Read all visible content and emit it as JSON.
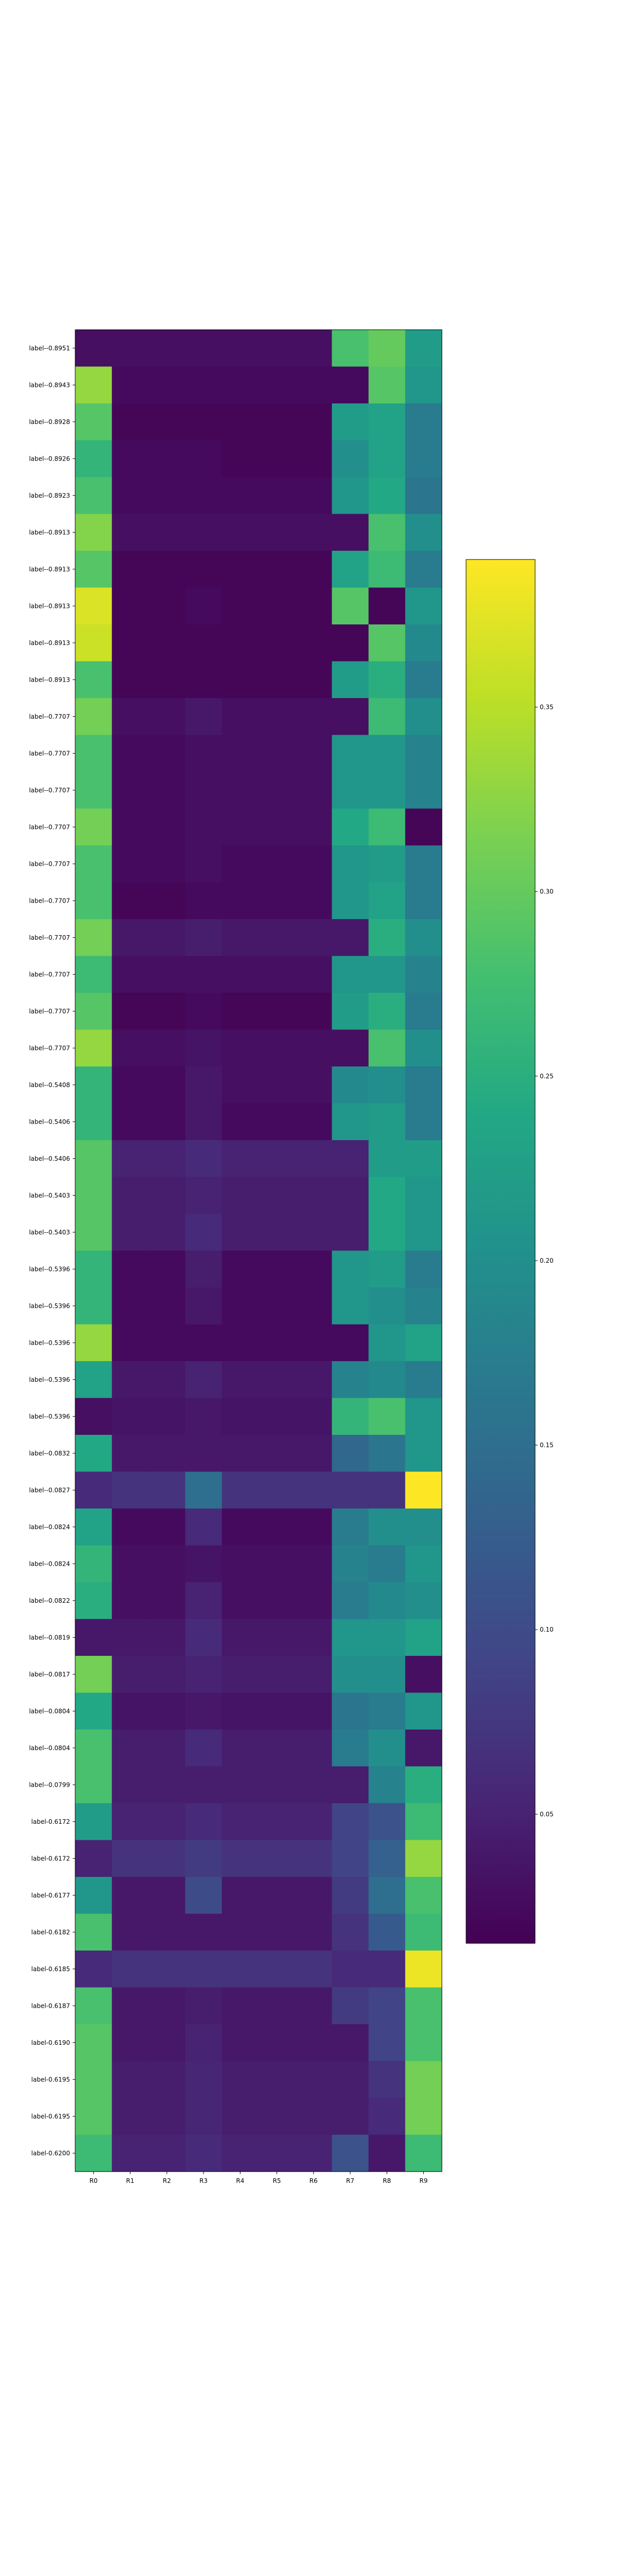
{
  "chart_data": {
    "type": "heatmap",
    "title": "",
    "xlabel": "",
    "ylabel": "",
    "columns": [
      "R0",
      "R1",
      "R2",
      "R3",
      "R4",
      "R5",
      "R6",
      "R7",
      "R8",
      "R9"
    ],
    "rows": [
      "label--0.8951",
      "label--0.8943",
      "label--0.8928",
      "label--0.8926",
      "label--0.8923",
      "label--0.8913",
      "label--0.8913",
      "label--0.8913",
      "label--0.8913",
      "label--0.8913",
      "label--0.7707",
      "label--0.7707",
      "label--0.7707",
      "label--0.7707",
      "label--0.7707",
      "label--0.7707",
      "label--0.7707",
      "label--0.7707",
      "label--0.7707",
      "label--0.7707",
      "label--0.5408",
      "label--0.5406",
      "label--0.5406",
      "label--0.5403",
      "label--0.5403",
      "label--0.5396",
      "label--0.5396",
      "label--0.5396",
      "label--0.5396",
      "label--0.5396",
      "label--0.0832",
      "label--0.0827",
      "label--0.0824",
      "label--0.0824",
      "label--0.0822",
      "label--0.0819",
      "label--0.0817",
      "label--0.0804",
      "label--0.0804",
      "label--0.0799",
      "label-0.6172",
      "label-0.6172",
      "label-0.6177",
      "label-0.6182",
      "label-0.6185",
      "label-0.6187",
      "label-0.6190",
      "label-0.6195",
      "label-0.6195",
      "label-0.6200"
    ],
    "values": [
      [
        0.03,
        0.03,
        0.03,
        0.03,
        0.03,
        0.03,
        0.03,
        0.28,
        0.3,
        0.22
      ],
      [
        0.33,
        0.025,
        0.025,
        0.025,
        0.025,
        0.025,
        0.025,
        0.025,
        0.29,
        0.21
      ],
      [
        0.29,
        0.02,
        0.02,
        0.02,
        0.02,
        0.02,
        0.02,
        0.22,
        0.23,
        0.17
      ],
      [
        0.26,
        0.025,
        0.025,
        0.025,
        0.02,
        0.02,
        0.02,
        0.2,
        0.23,
        0.17
      ],
      [
        0.28,
        0.025,
        0.025,
        0.025,
        0.025,
        0.025,
        0.025,
        0.21,
        0.24,
        0.16
      ],
      [
        0.32,
        0.03,
        0.03,
        0.03,
        0.03,
        0.03,
        0.03,
        0.03,
        0.28,
        0.2
      ],
      [
        0.29,
        0.02,
        0.02,
        0.02,
        0.02,
        0.02,
        0.02,
        0.23,
        0.27,
        0.17
      ],
      [
        0.37,
        0.02,
        0.02,
        0.025,
        0.02,
        0.02,
        0.02,
        0.29,
        0.02,
        0.21
      ],
      [
        0.36,
        0.02,
        0.02,
        0.02,
        0.02,
        0.02,
        0.02,
        0.02,
        0.29,
        0.19
      ],
      [
        0.28,
        0.02,
        0.02,
        0.02,
        0.02,
        0.02,
        0.02,
        0.22,
        0.25,
        0.17
      ],
      [
        0.31,
        0.03,
        0.03,
        0.04,
        0.03,
        0.03,
        0.03,
        0.03,
        0.27,
        0.2
      ],
      [
        0.28,
        0.025,
        0.025,
        0.03,
        0.03,
        0.03,
        0.03,
        0.21,
        0.21,
        0.18
      ],
      [
        0.28,
        0.025,
        0.025,
        0.03,
        0.03,
        0.03,
        0.03,
        0.21,
        0.21,
        0.18
      ],
      [
        0.31,
        0.025,
        0.025,
        0.03,
        0.03,
        0.03,
        0.03,
        0.24,
        0.27,
        0.02
      ],
      [
        0.28,
        0.025,
        0.025,
        0.03,
        0.025,
        0.025,
        0.025,
        0.21,
        0.22,
        0.17
      ],
      [
        0.28,
        0.02,
        0.02,
        0.025,
        0.025,
        0.025,
        0.025,
        0.21,
        0.23,
        0.17
      ],
      [
        0.31,
        0.04,
        0.04,
        0.045,
        0.04,
        0.04,
        0.04,
        0.04,
        0.25,
        0.2
      ],
      [
        0.27,
        0.03,
        0.03,
        0.03,
        0.03,
        0.03,
        0.03,
        0.21,
        0.21,
        0.18
      ],
      [
        0.29,
        0.02,
        0.02,
        0.025,
        0.02,
        0.02,
        0.02,
        0.22,
        0.25,
        0.17
      ],
      [
        0.33,
        0.03,
        0.03,
        0.035,
        0.03,
        0.03,
        0.03,
        0.03,
        0.28,
        0.2
      ],
      [
        0.26,
        0.025,
        0.025,
        0.04,
        0.03,
        0.03,
        0.03,
        0.19,
        0.2,
        0.17
      ],
      [
        0.26,
        0.025,
        0.025,
        0.04,
        0.025,
        0.025,
        0.025,
        0.21,
        0.22,
        0.17
      ],
      [
        0.29,
        0.05,
        0.05,
        0.06,
        0.05,
        0.05,
        0.05,
        0.05,
        0.22,
        0.22
      ],
      [
        0.29,
        0.045,
        0.045,
        0.05,
        0.045,
        0.045,
        0.045,
        0.045,
        0.24,
        0.21
      ],
      [
        0.29,
        0.045,
        0.045,
        0.06,
        0.045,
        0.045,
        0.045,
        0.045,
        0.24,
        0.21
      ],
      [
        0.26,
        0.025,
        0.025,
        0.045,
        0.025,
        0.025,
        0.025,
        0.21,
        0.22,
        0.17
      ],
      [
        0.26,
        0.025,
        0.025,
        0.04,
        0.025,
        0.025,
        0.025,
        0.21,
        0.2,
        0.18
      ],
      [
        0.33,
        0.025,
        0.025,
        0.025,
        0.025,
        0.025,
        0.025,
        0.025,
        0.21,
        0.23
      ],
      [
        0.23,
        0.04,
        0.04,
        0.05,
        0.04,
        0.04,
        0.04,
        0.18,
        0.19,
        0.17
      ],
      [
        0.03,
        0.035,
        0.035,
        0.04,
        0.035,
        0.035,
        0.035,
        0.26,
        0.28,
        0.21
      ],
      [
        0.24,
        0.04,
        0.04,
        0.04,
        0.04,
        0.04,
        0.04,
        0.14,
        0.16,
        0.21
      ],
      [
        0.06,
        0.07,
        0.07,
        0.15,
        0.07,
        0.07,
        0.07,
        0.07,
        0.07,
        0.39
      ],
      [
        0.23,
        0.025,
        0.025,
        0.06,
        0.025,
        0.025,
        0.025,
        0.17,
        0.2,
        0.2
      ],
      [
        0.26,
        0.03,
        0.03,
        0.035,
        0.03,
        0.03,
        0.03,
        0.18,
        0.17,
        0.21
      ],
      [
        0.25,
        0.03,
        0.03,
        0.05,
        0.03,
        0.03,
        0.03,
        0.17,
        0.19,
        0.2
      ],
      [
        0.04,
        0.04,
        0.04,
        0.06,
        0.04,
        0.04,
        0.04,
        0.21,
        0.21,
        0.23
      ],
      [
        0.31,
        0.045,
        0.045,
        0.05,
        0.045,
        0.045,
        0.045,
        0.2,
        0.2,
        0.03
      ],
      [
        0.24,
        0.035,
        0.035,
        0.04,
        0.035,
        0.035,
        0.035,
        0.16,
        0.17,
        0.21
      ],
      [
        0.28,
        0.045,
        0.045,
        0.06,
        0.045,
        0.045,
        0.045,
        0.17,
        0.2,
        0.04
      ],
      [
        0.28,
        0.045,
        0.045,
        0.045,
        0.045,
        0.045,
        0.045,
        0.045,
        0.18,
        0.25
      ],
      [
        0.22,
        0.05,
        0.05,
        0.06,
        0.05,
        0.05,
        0.05,
        0.09,
        0.11,
        0.27
      ],
      [
        0.05,
        0.07,
        0.07,
        0.08,
        0.07,
        0.07,
        0.07,
        0.09,
        0.13,
        0.33
      ],
      [
        0.21,
        0.04,
        0.04,
        0.1,
        0.04,
        0.04,
        0.04,
        0.08,
        0.15,
        0.28
      ],
      [
        0.28,
        0.04,
        0.04,
        0.04,
        0.04,
        0.04,
        0.04,
        0.07,
        0.12,
        0.27
      ],
      [
        0.06,
        0.07,
        0.07,
        0.07,
        0.07,
        0.07,
        0.07,
        0.06,
        0.06,
        0.38
      ],
      [
        0.28,
        0.04,
        0.04,
        0.045,
        0.04,
        0.04,
        0.04,
        0.08,
        0.09,
        0.28
      ],
      [
        0.29,
        0.04,
        0.04,
        0.05,
        0.04,
        0.04,
        0.04,
        0.04,
        0.09,
        0.28
      ],
      [
        0.29,
        0.045,
        0.045,
        0.055,
        0.045,
        0.045,
        0.045,
        0.045,
        0.07,
        0.31
      ],
      [
        0.29,
        0.045,
        0.045,
        0.055,
        0.045,
        0.045,
        0.045,
        0.045,
        0.06,
        0.31
      ],
      [
        0.27,
        0.05,
        0.05,
        0.06,
        0.05,
        0.05,
        0.05,
        0.11,
        0.04,
        0.27
      ]
    ],
    "colormap": "viridis",
    "vmin": 0.015,
    "vmax": 0.39,
    "colorbar": {
      "ticks": [
        0.05,
        0.1,
        0.15,
        0.2,
        0.25,
        0.3,
        0.35
      ],
      "tick_labels": [
        "0.05",
        "0.10",
        "0.15",
        "0.20",
        "0.25",
        "0.30",
        "0.35"
      ],
      "placement": "right"
    },
    "grid": false,
    "legend": "none"
  }
}
